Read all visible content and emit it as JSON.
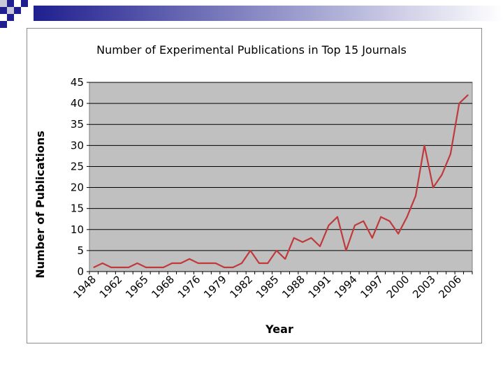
{
  "slide": {
    "header_colors": [
      "#1f1f8f",
      "#c7c7da"
    ]
  },
  "chart_data": {
    "type": "line",
    "title": "Number of Experimental Publications in Top 15 Journals",
    "xlabel": "Year",
    "ylabel": "Number of Publications",
    "ylim": [
      0,
      45
    ],
    "yticks": [
      0,
      5,
      10,
      15,
      20,
      25,
      30,
      35,
      40,
      45
    ],
    "x_tick_labels": [
      "1948",
      "1962",
      "1965",
      "1968",
      "1976",
      "1979",
      "1982",
      "1985",
      "1988",
      "1991",
      "1994",
      "1997",
      "2000",
      "2003",
      "2006"
    ],
    "grid": true,
    "legend": "none",
    "plot_background": "#c0c0c0",
    "line_color": "#c0393b",
    "series": [
      {
        "values": [
          1,
          2,
          1,
          1,
          1,
          2,
          1,
          1,
          1,
          2,
          2,
          3,
          2,
          2,
          2,
          1,
          1,
          2,
          5,
          2,
          2,
          5,
          3,
          8,
          7,
          8,
          6,
          11,
          13,
          5,
          11,
          12,
          8,
          13,
          12,
          9,
          13,
          18,
          30,
          20,
          23,
          28,
          40,
          42
        ]
      }
    ]
  }
}
